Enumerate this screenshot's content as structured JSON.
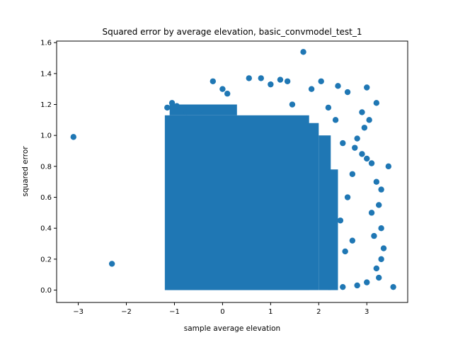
{
  "chart_data": {
    "type": "scatter",
    "title": "Squared error by average elevation, basic_convmodel_test_1",
    "xlabel": "sample average elevation",
    "ylabel": "squared error",
    "xlim": [
      -3.45,
      3.85
    ],
    "ylim": [
      -0.08,
      1.61
    ],
    "xticks": [
      -3,
      -2,
      -1,
      0,
      1,
      2,
      3
    ],
    "xtick_labels": [
      "−3",
      "−2",
      "−1",
      "0",
      "1",
      "2",
      "3"
    ],
    "yticks": [
      0.0,
      0.2,
      0.4,
      0.6,
      0.8,
      1.0,
      1.2,
      1.4,
      1.6
    ],
    "ytick_labels": [
      "0.0",
      "0.2",
      "0.4",
      "0.6",
      "0.8",
      "1.0",
      "1.2",
      "1.4",
      "1.6"
    ],
    "grid": false,
    "marker_color": "#1f77b4",
    "points": [
      [
        -3.1,
        0.99
      ],
      [
        -2.3,
        0.17
      ],
      [
        3.55,
        0.02
      ],
      [
        3.45,
        0.8
      ],
      [
        1.68,
        1.54
      ],
      [
        -1.15,
        1.18
      ],
      [
        -1.05,
        1.21
      ],
      [
        -0.95,
        1.19
      ],
      [
        -0.75,
        1.15
      ],
      [
        -0.45,
        1.17
      ],
      [
        -0.2,
        1.35
      ],
      [
        0.0,
        1.3
      ],
      [
        0.1,
        1.27
      ],
      [
        0.55,
        1.37
      ],
      [
        0.8,
        1.37
      ],
      [
        1.0,
        1.33
      ],
      [
        1.2,
        1.36
      ],
      [
        1.35,
        1.35
      ],
      [
        1.45,
        1.2
      ],
      [
        1.85,
        1.3
      ],
      [
        2.05,
        1.35
      ],
      [
        2.4,
        1.32
      ],
      [
        2.6,
        1.28
      ],
      [
        3.0,
        1.31
      ],
      [
        3.2,
        1.21
      ],
      [
        2.9,
        1.15
      ],
      [
        3.05,
        1.1
      ],
      [
        2.95,
        1.05
      ],
      [
        2.8,
        0.98
      ],
      [
        2.75,
        0.92
      ],
      [
        2.9,
        0.88
      ],
      [
        3.0,
        0.85
      ],
      [
        3.1,
        0.82
      ],
      [
        2.7,
        0.75
      ],
      [
        3.2,
        0.7
      ],
      [
        3.3,
        0.65
      ],
      [
        3.25,
        0.55
      ],
      [
        3.1,
        0.5
      ],
      [
        3.3,
        0.4
      ],
      [
        3.15,
        0.35
      ],
      [
        3.35,
        0.27
      ],
      [
        3.3,
        0.2
      ],
      [
        3.2,
        0.14
      ],
      [
        3.25,
        0.08
      ],
      [
        3.0,
        0.05
      ],
      [
        2.8,
        0.03
      ],
      [
        2.5,
        0.02
      ],
      [
        2.7,
        0.32
      ],
      [
        2.6,
        0.6
      ],
      [
        2.5,
        0.95
      ],
      [
        2.35,
        1.1
      ],
      [
        2.2,
        1.18
      ],
      [
        2.45,
        0.45
      ],
      [
        2.55,
        0.25
      ]
    ]
  }
}
